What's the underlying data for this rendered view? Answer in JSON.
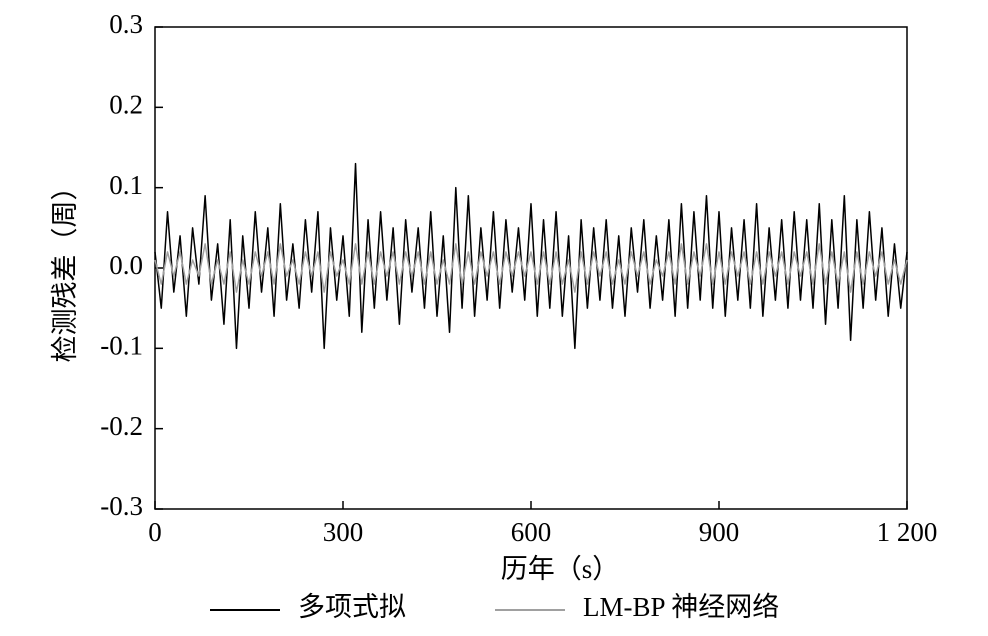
{
  "chart_data": {
    "type": "line",
    "xlabel": "历年（s）",
    "ylabel": "检测残差（周）",
    "xlim": [
      0,
      1200
    ],
    "ylim": [
      -0.3,
      0.3
    ],
    "xticks": [
      0,
      300,
      600,
      900,
      {
        "value": 1200,
        "label": "1 200"
      }
    ],
    "yticks": [
      -0.3,
      -0.2,
      -0.1,
      {
        "value": 0,
        "label": "0.0"
      },
      0.1,
      0.2,
      0.3
    ],
    "x": [
      0,
      10,
      20,
      30,
      40,
      50,
      60,
      70,
      80,
      90,
      100,
      110,
      120,
      130,
      140,
      150,
      160,
      170,
      180,
      190,
      200,
      210,
      220,
      230,
      240,
      250,
      260,
      270,
      280,
      290,
      300,
      310,
      320,
      330,
      340,
      350,
      360,
      370,
      380,
      390,
      400,
      410,
      420,
      430,
      440,
      450,
      460,
      470,
      480,
      490,
      500,
      510,
      520,
      530,
      540,
      550,
      560,
      570,
      580,
      590,
      600,
      610,
      620,
      630,
      640,
      650,
      660,
      670,
      680,
      690,
      700,
      710,
      720,
      730,
      740,
      750,
      760,
      770,
      780,
      790,
      800,
      810,
      820,
      830,
      840,
      850,
      860,
      870,
      880,
      890,
      900,
      910,
      920,
      930,
      940,
      950,
      960,
      970,
      980,
      990,
      1000,
      1010,
      1020,
      1030,
      1040,
      1050,
      1060,
      1070,
      1080,
      1090,
      1100,
      1110,
      1120,
      1130,
      1140,
      1150,
      1160,
      1170,
      1180,
      1190,
      1200
    ],
    "series": [
      {
        "name": "多项式拟",
        "color": "#000000",
        "values": [
          0.02,
          -0.05,
          0.07,
          -0.03,
          0.04,
          -0.06,
          0.05,
          -0.02,
          0.09,
          -0.04,
          0.03,
          -0.07,
          0.06,
          -0.1,
          0.04,
          -0.05,
          0.07,
          -0.03,
          0.05,
          -0.06,
          0.08,
          -0.04,
          0.03,
          -0.05,
          0.06,
          -0.03,
          0.07,
          -0.1,
          0.05,
          -0.04,
          0.04,
          -0.06,
          0.13,
          -0.08,
          0.06,
          -0.05,
          0.07,
          -0.04,
          0.05,
          -0.07,
          0.06,
          -0.03,
          0.05,
          -0.05,
          0.07,
          -0.06,
          0.04,
          -0.08,
          0.1,
          -0.05,
          0.09,
          -0.06,
          0.05,
          -0.04,
          0.07,
          -0.05,
          0.06,
          -0.03,
          0.05,
          -0.04,
          0.08,
          -0.06,
          0.06,
          -0.05,
          0.07,
          -0.06,
          0.04,
          -0.1,
          0.06,
          -0.05,
          0.05,
          -0.04,
          0.06,
          -0.05,
          0.04,
          -0.06,
          0.05,
          -0.03,
          0.06,
          -0.05,
          0.04,
          -0.04,
          0.06,
          -0.06,
          0.08,
          -0.05,
          0.07,
          -0.04,
          0.09,
          -0.05,
          0.07,
          -0.06,
          0.05,
          -0.04,
          0.06,
          -0.05,
          0.08,
          -0.06,
          0.05,
          -0.04,
          0.06,
          -0.05,
          0.07,
          -0.04,
          0.06,
          -0.05,
          0.08,
          -0.07,
          0.06,
          -0.05,
          0.09,
          -0.09,
          0.06,
          -0.05,
          0.07,
          -0.04,
          0.05,
          -0.06,
          0.03,
          -0.05,
          0.02
        ]
      },
      {
        "name": "LM-BP 神经网络",
        "color": "#a0a0a0",
        "values": [
          0.01,
          -0.02,
          0.02,
          -0.01,
          0.02,
          -0.02,
          0.01,
          -0.01,
          0.03,
          -0.02,
          0.01,
          -0.02,
          0.02,
          -0.03,
          0.01,
          -0.02,
          0.02,
          -0.01,
          0.02,
          -0.02,
          0.03,
          -0.01,
          0.01,
          -0.02,
          0.02,
          -0.01,
          0.02,
          -0.03,
          0.02,
          -0.01,
          0.01,
          -0.02,
          0.03,
          -0.02,
          0.02,
          -0.02,
          0.02,
          -0.01,
          0.02,
          -0.02,
          0.02,
          -0.01,
          0.02,
          -0.02,
          0.02,
          -0.02,
          0.01,
          -0.02,
          0.03,
          -0.02,
          0.02,
          -0.02,
          0.02,
          -0.01,
          0.02,
          -0.02,
          0.02,
          -0.01,
          0.02,
          -0.01,
          0.02,
          -0.02,
          0.02,
          -0.02,
          0.02,
          -0.02,
          0.01,
          -0.03,
          0.02,
          -0.02,
          0.02,
          -0.01,
          0.02,
          -0.02,
          0.01,
          -0.02,
          0.02,
          -0.01,
          0.02,
          -0.02,
          0.01,
          -0.01,
          0.02,
          -0.02,
          0.03,
          -0.02,
          0.02,
          -0.01,
          0.03,
          -0.02,
          0.02,
          -0.02,
          0.02,
          -0.01,
          0.02,
          -0.02,
          0.02,
          -0.02,
          0.02,
          -0.01,
          0.02,
          -0.02,
          0.02,
          -0.01,
          0.02,
          -0.02,
          0.03,
          -0.02,
          0.02,
          -0.02,
          0.02,
          -0.03,
          0.02,
          -0.02,
          0.02,
          -0.01,
          0.02,
          -0.02,
          0.01,
          -0.02,
          0.01
        ]
      }
    ]
  }
}
